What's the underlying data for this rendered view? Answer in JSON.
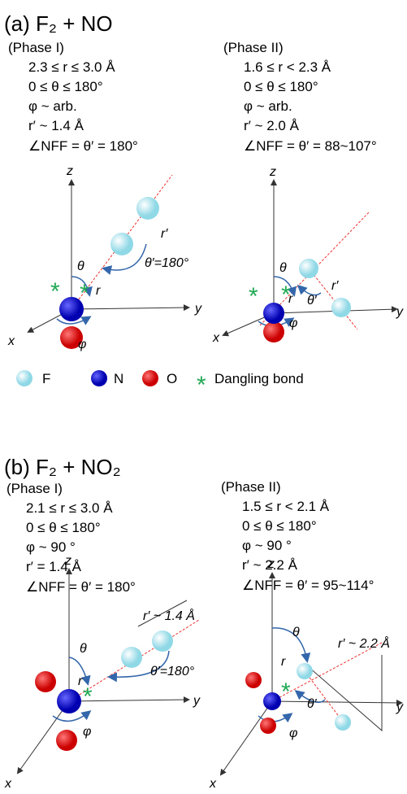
{
  "panels": [
    {
      "title": "(a) F₂ + NO",
      "phases": [
        {
          "heading": "(Phase I)",
          "lines": [
            "2.3 ≤ r ≤ 3.0 Å",
            "0 ≤ θ ≤ 180°",
            "φ ~ arb.",
            "r′ ~ 1.4 Å",
            "∠NFF = θ′ = 180°"
          ],
          "labels": {
            "z": "z",
            "y": "y",
            "x": "x",
            "theta": "θ",
            "r": "r",
            "r_prime": "r′",
            "theta_prime": "θ′=180°",
            "phi": "φ"
          }
        },
        {
          "heading": "(Phase II)",
          "lines": [
            "1.6 ≤ r < 2.3 Å",
            "0 ≤ θ ≤ 180°",
            "φ ~ arb.",
            "r′ ~ 2.0 Å",
            "∠NFF = θ′ = 88~107°"
          ],
          "labels": {
            "z": "z",
            "y": "y",
            "x": "x",
            "theta": "θ",
            "r": "r",
            "r_prime": "r′",
            "theta_prime": "θ′",
            "phi": "φ"
          }
        }
      ]
    },
    {
      "title": "(b) F₂ + NO₂",
      "phases": [
        {
          "heading": "(Phase I)",
          "lines": [
            "2.1 ≤ r ≤ 3.0 Å",
            "0 ≤ θ ≤ 180°",
            "φ ~ 90 °",
            "r′ = 1.4 Å",
            "∠NFF = θ′ = 180°"
          ],
          "labels": {
            "z": "z",
            "y": "y",
            "x": "x",
            "theta": "θ",
            "r": "r",
            "r_prime": "r′ ~ 1.4 Å",
            "theta_prime": "θ′=180°",
            "phi": "φ"
          }
        },
        {
          "heading": "(Phase II)",
          "lines": [
            "1.5 ≤ r < 2.1 Å",
            "0 ≤ θ ≤ 180°",
            "φ ~ 90 °",
            "r′ ~ 2.2 Å",
            "∠NFF = θ′ = 95~114°"
          ],
          "labels": {
            "z": "z",
            "y": "y",
            "x": "x",
            "theta": "θ",
            "r": "r",
            "r_prime": "r′ ~ 2.2 Å",
            "theta_prime": "θ′",
            "phi": "φ"
          }
        }
      ]
    }
  ],
  "legend": [
    "F",
    "N",
    "O",
    "Dangling bond"
  ]
}
